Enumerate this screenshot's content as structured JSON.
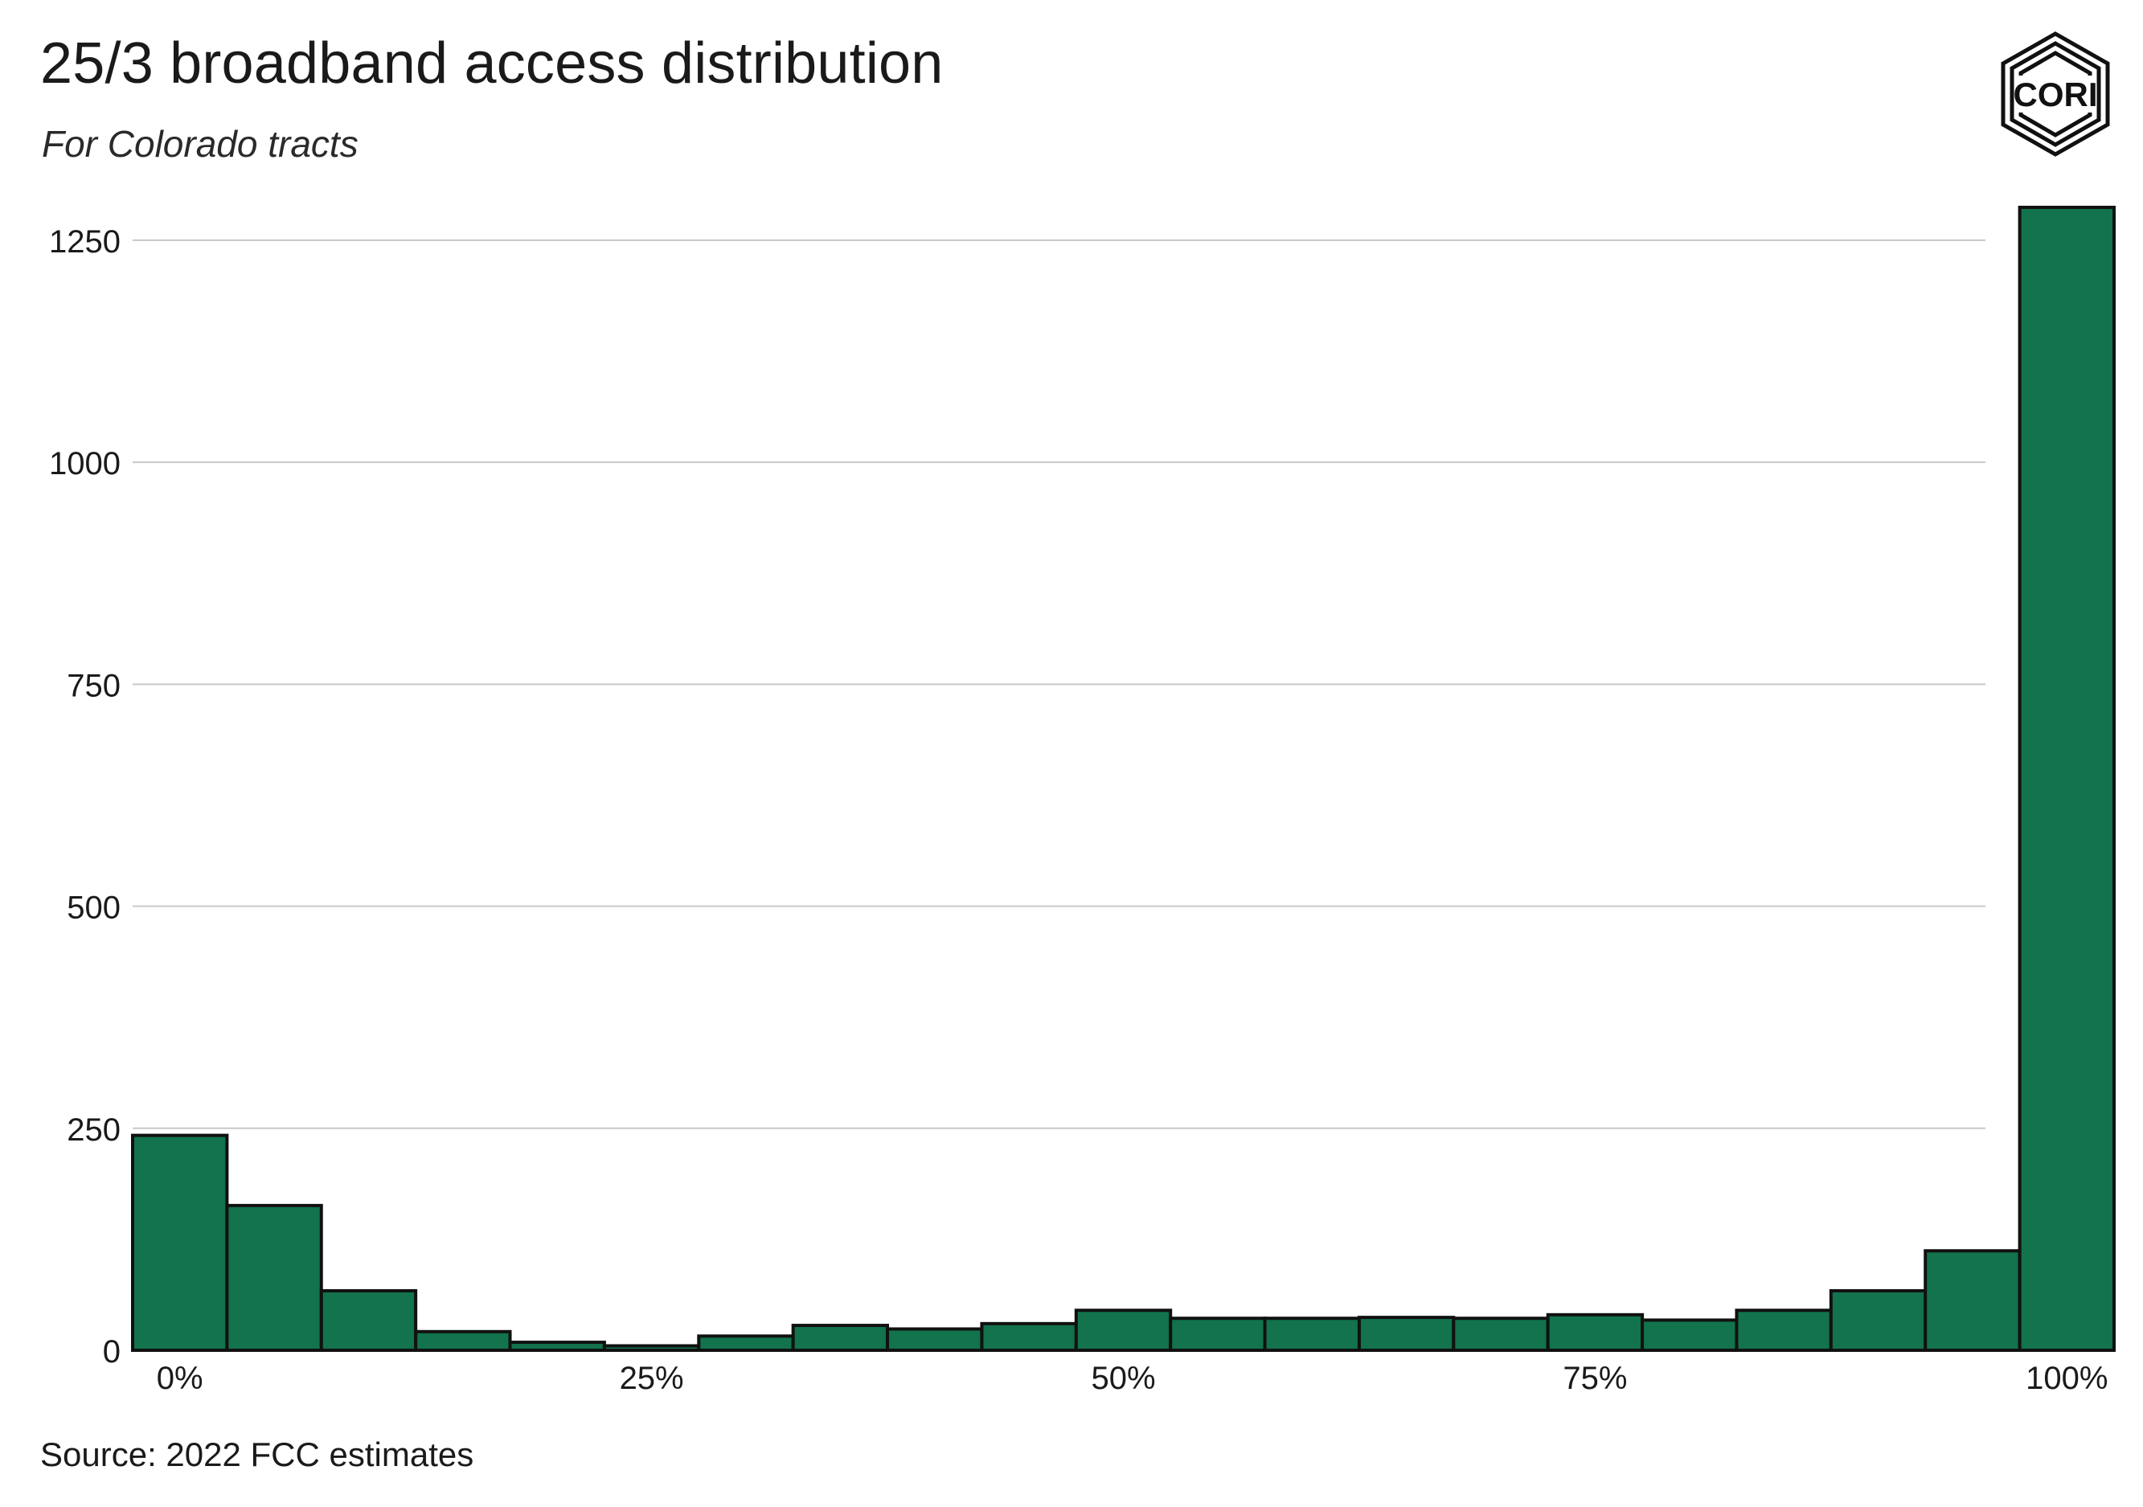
{
  "title": "25/3 broadband access distribution",
  "subtitle": "For Colorado tracts",
  "source": "Source: 2022 FCC estimates",
  "logo": {
    "icon": "cori-logo-icon",
    "text": "CORI"
  },
  "colors": {
    "bar_fill": "#12734c",
    "bar_stroke": "#111111",
    "grid": "#c8c8c8",
    "text": "#1a1a1a"
  },
  "chart_data": {
    "type": "bar",
    "title": "25/3 broadband access distribution",
    "subtitle": "For Colorado tracts",
    "xlabel": "",
    "ylabel": "",
    "bin_centers": [
      0,
      0.05,
      0.1,
      0.15,
      0.2,
      0.25,
      0.3,
      0.35,
      0.4,
      0.45,
      0.5,
      0.55,
      0.6,
      0.65,
      0.7,
      0.75,
      0.8,
      0.85,
      0.9,
      0.95,
      1.0
    ],
    "values": [
      242,
      163,
      67,
      21,
      9,
      5,
      16,
      28,
      24,
      30,
      45,
      36,
      36,
      37,
      36,
      40,
      34,
      45,
      67,
      112,
      1287
    ],
    "xlim": [
      -0.025,
      1.025
    ],
    "ylim": [
      0,
      1287
    ],
    "x_ticks": [
      0,
      0.25,
      0.5,
      0.75,
      1.0
    ],
    "x_tick_labels": [
      "0%",
      "25%",
      "50%",
      "75%",
      "100%"
    ],
    "y_ticks": [
      0,
      250,
      500,
      750,
      1000,
      1250
    ],
    "y_tick_labels": [
      "0",
      "250",
      "500",
      "750",
      "1000",
      "1250"
    ],
    "grid": "horizontal",
    "legend": "none"
  }
}
